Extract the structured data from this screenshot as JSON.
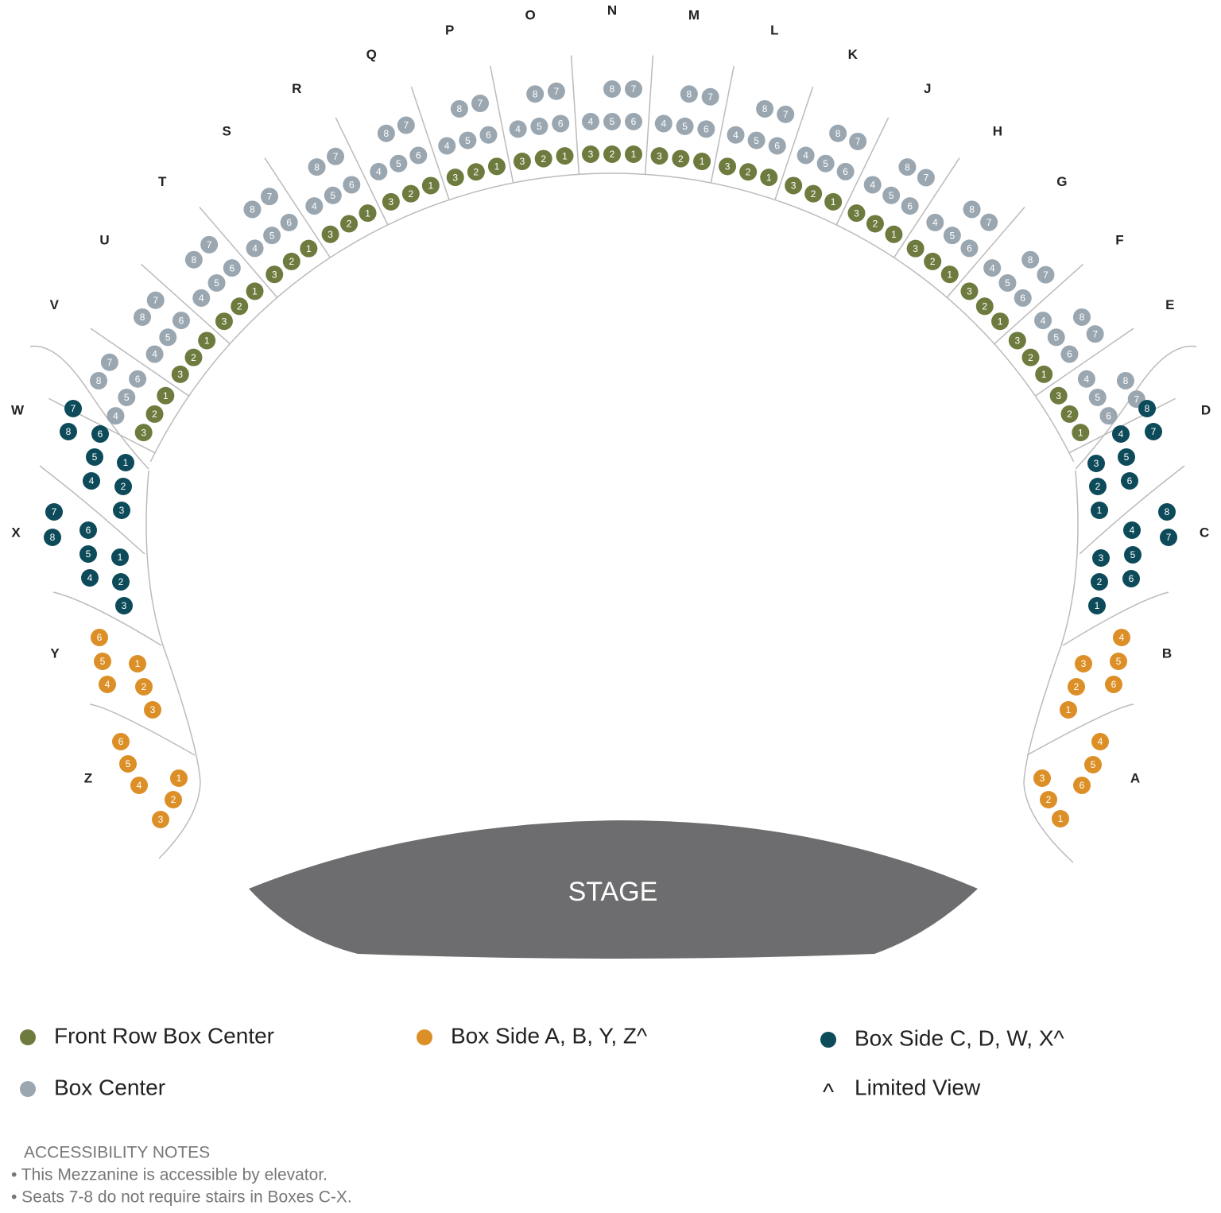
{
  "center_boxes": [
    {
      "label": "V",
      "rows": [
        {
          "color": "#6e7b3f",
          "seats": [
            3,
            2,
            1
          ]
        },
        {
          "color": "#9aa7b1",
          "seats": [
            4,
            5,
            6
          ]
        },
        {
          "color": "#9aa7b1",
          "seats": [
            8,
            7
          ]
        }
      ]
    },
    {
      "label": "U",
      "rows": [
        {
          "color": "#6e7b3f",
          "seats": [
            3,
            2,
            1
          ]
        },
        {
          "color": "#9aa7b1",
          "seats": [
            4,
            5,
            6
          ]
        },
        {
          "color": "#9aa7b1",
          "seats": [
            8,
            7
          ]
        }
      ]
    },
    {
      "label": "T",
      "rows": [
        {
          "color": "#6e7b3f",
          "seats": [
            3,
            2,
            1
          ]
        },
        {
          "color": "#9aa7b1",
          "seats": [
            4,
            5,
            6
          ]
        },
        {
          "color": "#9aa7b1",
          "seats": [
            8,
            7
          ]
        }
      ]
    },
    {
      "label": "S",
      "rows": [
        {
          "color": "#6e7b3f",
          "seats": [
            3,
            2,
            1
          ]
        },
        {
          "color": "#9aa7b1",
          "seats": [
            4,
            5,
            6
          ]
        },
        {
          "color": "#9aa7b1",
          "seats": [
            8,
            7
          ]
        }
      ]
    },
    {
      "label": "R",
      "rows": [
        {
          "color": "#6e7b3f",
          "seats": [
            3,
            2,
            1
          ]
        },
        {
          "color": "#9aa7b1",
          "seats": [
            4,
            5,
            6
          ]
        },
        {
          "color": "#9aa7b1",
          "seats": [
            8,
            7
          ]
        }
      ]
    },
    {
      "label": "Q",
      "rows": [
        {
          "color": "#6e7b3f",
          "seats": [
            3,
            2,
            1
          ]
        },
        {
          "color": "#9aa7b1",
          "seats": [
            4,
            5,
            6
          ]
        },
        {
          "color": "#9aa7b1",
          "seats": [
            8,
            7
          ]
        }
      ]
    },
    {
      "label": "P",
      "rows": [
        {
          "color": "#6e7b3f",
          "seats": [
            3,
            2,
            1
          ]
        },
        {
          "color": "#9aa7b1",
          "seats": [
            4,
            5,
            6
          ]
        },
        {
          "color": "#9aa7b1",
          "seats": [
            8,
            7
          ]
        }
      ]
    },
    {
      "label": "O",
      "rows": [
        {
          "color": "#6e7b3f",
          "seats": [
            3,
            2,
            1
          ]
        },
        {
          "color": "#9aa7b1",
          "seats": [
            4,
            5,
            6
          ]
        },
        {
          "color": "#9aa7b1",
          "seats": [
            8,
            7
          ]
        }
      ]
    },
    {
      "label": "N",
      "rows": [
        {
          "color": "#6e7b3f",
          "seats": [
            3,
            2,
            1
          ]
        },
        {
          "color": "#9aa7b1",
          "seats": [
            4,
            5,
            6
          ]
        },
        {
          "color": "#9aa7b1",
          "seats": [
            8,
            7
          ]
        }
      ]
    },
    {
      "label": "M",
      "rows": [
        {
          "color": "#6e7b3f",
          "seats": [
            3,
            2,
            1
          ]
        },
        {
          "color": "#9aa7b1",
          "seats": [
            4,
            5,
            6
          ]
        },
        {
          "color": "#9aa7b1",
          "seats": [
            8,
            7
          ]
        }
      ]
    },
    {
      "label": "L",
      "rows": [
        {
          "color": "#6e7b3f",
          "seats": [
            3,
            2,
            1
          ]
        },
        {
          "color": "#9aa7b1",
          "seats": [
            4,
            5,
            6
          ]
        },
        {
          "color": "#9aa7b1",
          "seats": [
            8,
            7
          ]
        }
      ]
    },
    {
      "label": "K",
      "rows": [
        {
          "color": "#6e7b3f",
          "seats": [
            3,
            2,
            1
          ]
        },
        {
          "color": "#9aa7b1",
          "seats": [
            4,
            5,
            6
          ]
        },
        {
          "color": "#9aa7b1",
          "seats": [
            8,
            7
          ]
        }
      ]
    },
    {
      "label": "J",
      "rows": [
        {
          "color": "#6e7b3f",
          "seats": [
            3,
            2,
            1
          ]
        },
        {
          "color": "#9aa7b1",
          "seats": [
            4,
            5,
            6
          ]
        },
        {
          "color": "#9aa7b1",
          "seats": [
            8,
            7
          ]
        }
      ]
    },
    {
      "label": "H",
      "rows": [
        {
          "color": "#6e7b3f",
          "seats": [
            3,
            2,
            1
          ]
        },
        {
          "color": "#9aa7b1",
          "seats": [
            4,
            5,
            6
          ]
        },
        {
          "color": "#9aa7b1",
          "seats": [
            8,
            7
          ]
        }
      ]
    },
    {
      "label": "G",
      "rows": [
        {
          "color": "#6e7b3f",
          "seats": [
            3,
            2,
            1
          ]
        },
        {
          "color": "#9aa7b1",
          "seats": [
            4,
            5,
            6
          ]
        },
        {
          "color": "#9aa7b1",
          "seats": [
            8,
            7
          ]
        }
      ]
    },
    {
      "label": "F",
      "rows": [
        {
          "color": "#6e7b3f",
          "seats": [
            3,
            2,
            1
          ]
        },
        {
          "color": "#9aa7b1",
          "seats": [
            4,
            5,
            6
          ]
        },
        {
          "color": "#9aa7b1",
          "seats": [
            8,
            7
          ]
        }
      ]
    },
    {
      "label": "E",
      "rows": [
        {
          "color": "#6e7b3f",
          "seats": [
            3,
            2,
            1
          ]
        },
        {
          "color": "#9aa7b1",
          "seats": [
            4,
            5,
            6
          ]
        },
        {
          "color": "#9aa7b1",
          "seats": [
            8,
            7
          ]
        }
      ]
    }
  ],
  "side_boxes": [
    {
      "label": "W",
      "color": "#0d4a5a",
      "seats": [
        7,
        8,
        6,
        5,
        4,
        1,
        2,
        3
      ]
    },
    {
      "label": "X",
      "color": "#0d4a5a",
      "seats": [
        7,
        8,
        6,
        5,
        4,
        1,
        2,
        3
      ]
    },
    {
      "label": "Y",
      "color": "#dc8f27",
      "seats": [
        6,
        5,
        4,
        1,
        2,
        3
      ]
    },
    {
      "label": "Z",
      "color": "#dc8f27",
      "seats": [
        6,
        5,
        4,
        1,
        2,
        3
      ]
    },
    {
      "label": "D",
      "color": "#0d4a5a",
      "seats": [
        8,
        7,
        4,
        5,
        6,
        3,
        2,
        1
      ]
    },
    {
      "label": "C",
      "color": "#0d4a5a",
      "seats": [
        8,
        7,
        4,
        5,
        6,
        3,
        2,
        1
      ]
    },
    {
      "label": "B",
      "color": "#dc8f27",
      "seats": [
        4,
        5,
        6,
        3,
        2,
        1
      ]
    },
    {
      "label": "A",
      "color": "#dc8f27",
      "seats": [
        4,
        5,
        6,
        3,
        2,
        1
      ]
    }
  ],
  "stage": "STAGE",
  "legend": [
    {
      "label": "Front Row Box Center",
      "color": "#6e7b3f"
    },
    {
      "label": "Box Side A, B, Y, Z^",
      "color": "#dc8f27"
    },
    {
      "label": "Box Side C, D, W, X^",
      "color": "#0d4a5a"
    },
    {
      "label": "Box Center",
      "color": "#9aa7b1"
    },
    {
      "label": "Limited View",
      "symbol": "^"
    }
  ],
  "notes": {
    "title": "ACCESSIBILITY NOTES",
    "items": [
      "• This Mezzanine is accessible by elevator.",
      "• Seats 7-8 do not require stairs in Boxes C-X."
    ]
  }
}
